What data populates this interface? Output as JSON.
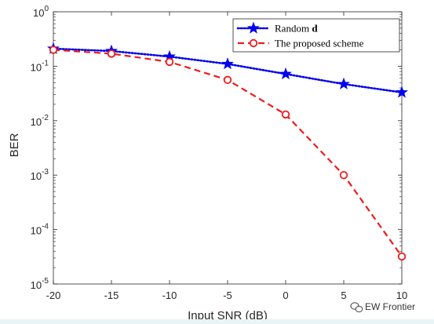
{
  "chart_data": {
    "type": "line",
    "x": [
      -20,
      -15,
      -10,
      -5,
      0,
      5,
      10
    ],
    "xlabel": "Input SNR (dB)",
    "ylabel": "BER",
    "xlim": [
      -20,
      10
    ],
    "ylim": [
      1e-05,
      1
    ],
    "yscale": "log",
    "grid": false,
    "legend_position": "top-right",
    "x_ticks": [
      "-20",
      "-15",
      "-10",
      "-5",
      "0",
      "5",
      "10"
    ],
    "y_ticks": [
      {
        "base": "10",
        "exp": "0"
      },
      {
        "base": "10",
        "exp": "-1"
      },
      {
        "base": "10",
        "exp": "-2"
      },
      {
        "base": "10",
        "exp": "-3"
      },
      {
        "base": "10",
        "exp": "-4"
      },
      {
        "base": "10",
        "exp": "-5"
      }
    ],
    "series": [
      {
        "name_prefix": "Random ",
        "name_bold": "d",
        "color": "#0000ee",
        "line_style": "dotted",
        "marker": "star",
        "values": [
          0.21,
          0.19,
          0.15,
          0.11,
          0.072,
          0.047,
          0.033
        ]
      },
      {
        "name_prefix": "The proposed scheme",
        "name_bold": "",
        "color": "#ee1c1c",
        "line_style": "dashed",
        "marker": "circle",
        "values": [
          0.2,
          0.17,
          0.12,
          0.056,
          0.013,
          0.001,
          3.2e-05
        ]
      }
    ]
  },
  "watermark": {
    "icon": "wechat-icon",
    "text": "EW Frontier"
  }
}
